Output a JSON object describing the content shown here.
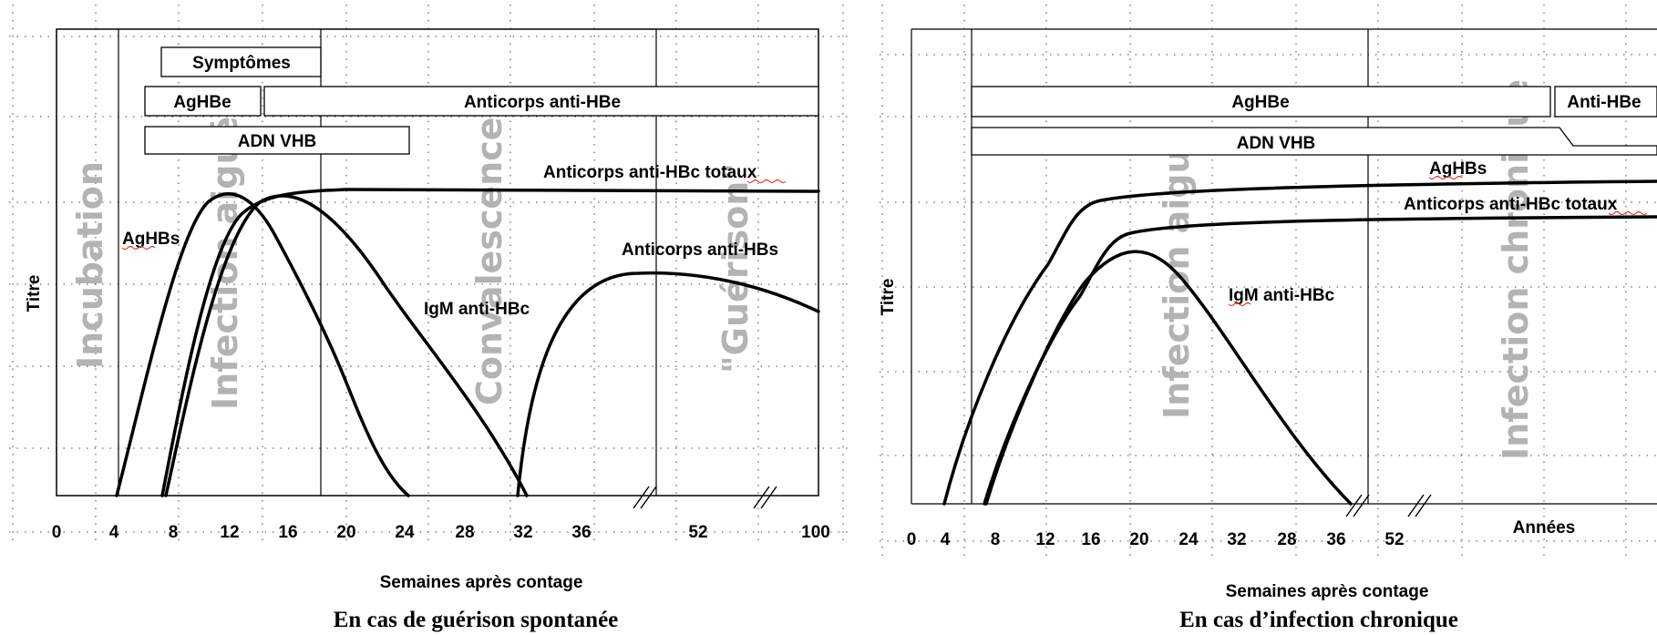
{
  "chart_data": [
    {
      "type": "line",
      "caption": "En cas de guérison spontanée",
      "xlabel": "Semaines après contage",
      "ylabel": "Titre",
      "x_ticks": [
        "0",
        "4",
        "8",
        "12",
        "16",
        "20",
        "24",
        "28",
        "32",
        "36",
        "52",
        "100"
      ],
      "phases": [
        "Incubation",
        "Infection aiguë",
        "Convalescence",
        "\"Guérison\""
      ],
      "bars": [
        {
          "name": "Symptômes",
          "start": 7,
          "end": 18
        },
        {
          "name": "AgHBe",
          "start": 6,
          "end": 14
        },
        {
          "name": "Anticorps anti-HBe",
          "start": 14,
          "end": 100
        },
        {
          "name": "ADN VHB",
          "start": 6,
          "end": 24
        }
      ],
      "series": [
        {
          "name": "AgHBs",
          "x": [
            4,
            8,
            12,
            16,
            20,
            24
          ],
          "y": [
            0,
            0.6,
            0.94,
            0.66,
            0.3,
            0
          ]
        },
        {
          "name": "Anticorps anti-HBc totaux",
          "x": [
            7,
            10,
            14,
            20,
            28,
            100
          ],
          "y": [
            0,
            0.62,
            0.9,
            0.97,
            0.99,
            0.99
          ]
        },
        {
          "name": "IgM anti-HBc",
          "x": [
            7.5,
            11,
            15,
            20,
            26,
            32
          ],
          "y": [
            0,
            0.6,
            0.94,
            0.72,
            0.38,
            0
          ]
        },
        {
          "name": "Anticorps anti-HBs",
          "x": [
            32,
            36,
            52,
            100
          ],
          "y": [
            0,
            0.55,
            0.73,
            0.6
          ]
        }
      ]
    },
    {
      "type": "line",
      "caption": "En cas d’infection chronique",
      "xlabel": "Semaines après contage",
      "x2label": "Années",
      "ylabel": "Titre",
      "x_ticks": [
        "0",
        "4",
        "8",
        "12",
        "16",
        "20",
        "24",
        "32",
        "28",
        "36",
        "52"
      ],
      "phases": [
        "Infection aiguë",
        "Infection chronique"
      ],
      "bars": [
        {
          "name": "AgHBe",
          "start": 6,
          "end": "Années"
        },
        {
          "name": "Anti-HBe",
          "start": "Années",
          "end": "Années"
        },
        {
          "name": "ADN VHB",
          "start": 6,
          "end": "Années"
        }
      ],
      "series": [
        {
          "name": "AgHBs",
          "x": [
            4,
            8,
            12,
            16,
            20,
            52
          ],
          "y": [
            0,
            0.4,
            0.72,
            0.95,
            1.0,
            1.02
          ]
        },
        {
          "name": "Anticorps anti-HBc totaux",
          "x": [
            7.5,
            12,
            16,
            19,
            52
          ],
          "y": [
            0,
            0.55,
            0.86,
            0.92,
            0.95
          ]
        },
        {
          "name": "IgM anti-HBc",
          "x": [
            7.5,
            12,
            16,
            20,
            24,
            36
          ],
          "y": [
            0,
            0.55,
            0.84,
            0.78,
            0.55,
            0
          ]
        }
      ]
    }
  ]
}
